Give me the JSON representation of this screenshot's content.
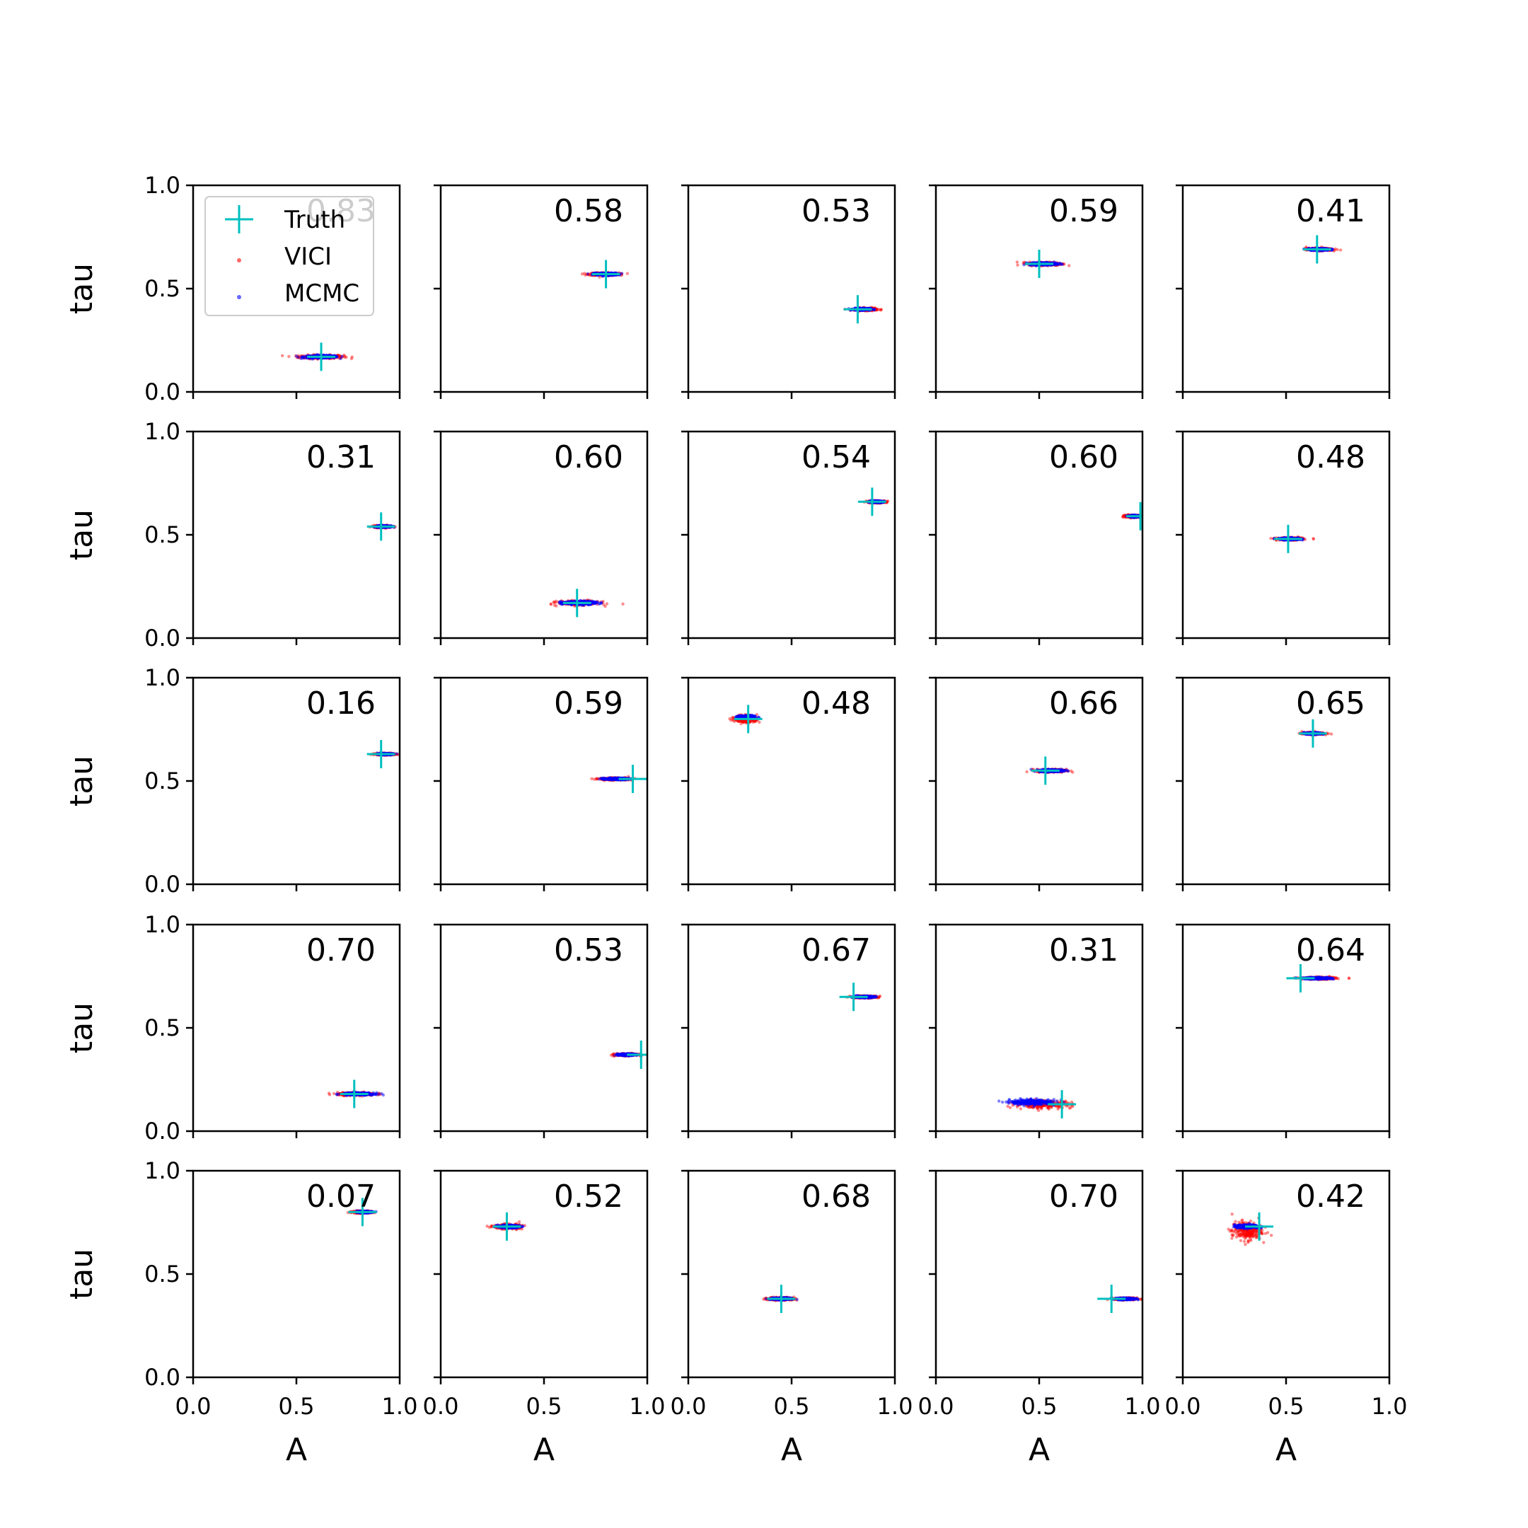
{
  "colors": {
    "truth": "#00bfbf",
    "vici": "#ff0000",
    "mcmc": "#0000ff",
    "axis": "#000000"
  },
  "legend": {
    "items": [
      {
        "label": "Truth",
        "marker": "plus",
        "color": "#00bfbf"
      },
      {
        "label": "VICI",
        "marker": "dot",
        "color": "#ff0000"
      },
      {
        "label": "MCMC",
        "marker": "dot",
        "color": "#0000ff"
      }
    ],
    "placement": "upper-left of first panel"
  },
  "chart_data": {
    "type": "scatter",
    "layout": {
      "rows": 5,
      "cols": 5
    },
    "xlabel": "A",
    "ylabel": "tau",
    "xlim": [
      0.0,
      1.0
    ],
    "ylim": [
      0.0,
      1.0
    ],
    "xticks": [
      "0.0",
      "0.5",
      "1.0"
    ],
    "yticks": [
      "0.0",
      "0.5",
      "1.0"
    ],
    "grid": false,
    "panels": [
      {
        "score": "0.83",
        "truth": [
          0.62,
          0.17
        ],
        "vici": {
          "center": [
            0.62,
            0.17
          ],
          "spread": [
            0.12,
            0.01
          ]
        },
        "mcmc": {
          "center": [
            0.62,
            0.17
          ],
          "spread": [
            0.1,
            0.008
          ]
        }
      },
      {
        "score": "0.58",
        "truth": [
          0.8,
          0.57
        ],
        "vici": {
          "center": [
            0.79,
            0.57
          ],
          "spread": [
            0.08,
            0.008
          ]
        },
        "mcmc": {
          "center": [
            0.8,
            0.57
          ],
          "spread": [
            0.07,
            0.007
          ]
        }
      },
      {
        "score": "0.53",
        "truth": [
          0.82,
          0.4
        ],
        "vici": {
          "center": [
            0.86,
            0.4
          ],
          "spread": [
            0.06,
            0.007
          ]
        },
        "mcmc": {
          "center": [
            0.84,
            0.4
          ],
          "spread": [
            0.05,
            0.006
          ]
        }
      },
      {
        "score": "0.59",
        "truth": [
          0.5,
          0.62
        ],
        "vici": {
          "center": [
            0.53,
            0.62
          ],
          "spread": [
            0.09,
            0.009
          ]
        },
        "mcmc": {
          "center": [
            0.52,
            0.62
          ],
          "spread": [
            0.08,
            0.008
          ]
        }
      },
      {
        "score": "0.41",
        "truth": [
          0.65,
          0.69
        ],
        "vici": {
          "center": [
            0.66,
            0.69
          ],
          "spread": [
            0.07,
            0.007
          ]
        },
        "mcmc": {
          "center": [
            0.66,
            0.69
          ],
          "spread": [
            0.06,
            0.006
          ]
        }
      },
      {
        "score": "0.31",
        "truth": [
          0.91,
          0.54
        ],
        "vici": {
          "center": [
            0.92,
            0.54
          ],
          "spread": [
            0.05,
            0.006
          ]
        },
        "mcmc": {
          "center": [
            0.92,
            0.54
          ],
          "spread": [
            0.04,
            0.005
          ]
        }
      },
      {
        "score": "0.60",
        "truth": [
          0.66,
          0.17
        ],
        "vici": {
          "center": [
            0.67,
            0.17
          ],
          "spread": [
            0.11,
            0.012
          ]
        },
        "mcmc": {
          "center": [
            0.67,
            0.17
          ],
          "spread": [
            0.1,
            0.01
          ]
        }
      },
      {
        "score": "0.54",
        "truth": [
          0.89,
          0.66
        ],
        "vici": {
          "center": [
            0.91,
            0.66
          ],
          "spread": [
            0.05,
            0.006
          ]
        },
        "mcmc": {
          "center": [
            0.91,
            0.66
          ],
          "spread": [
            0.04,
            0.005
          ]
        }
      },
      {
        "score": "0.60",
        "truth": [
          0.99,
          0.59
        ],
        "vici": {
          "center": [
            0.95,
            0.59
          ],
          "spread": [
            0.04,
            0.006
          ]
        },
        "mcmc": {
          "center": [
            0.96,
            0.59
          ],
          "spread": [
            0.03,
            0.005
          ]
        }
      },
      {
        "score": "0.48",
        "truth": [
          0.51,
          0.48
        ],
        "vici": {
          "center": [
            0.52,
            0.48
          ],
          "spread": [
            0.07,
            0.007
          ]
        },
        "mcmc": {
          "center": [
            0.52,
            0.48
          ],
          "spread": [
            0.06,
            0.006
          ]
        }
      },
      {
        "score": "0.16",
        "truth": [
          0.91,
          0.63
        ],
        "vici": {
          "center": [
            0.93,
            0.63
          ],
          "spread": [
            0.05,
            0.005
          ]
        },
        "mcmc": {
          "center": [
            0.93,
            0.63
          ],
          "spread": [
            0.04,
            0.004
          ]
        }
      },
      {
        "score": "0.59",
        "truth": [
          0.93,
          0.51
        ],
        "vici": {
          "center": [
            0.84,
            0.51
          ],
          "spread": [
            0.08,
            0.006
          ]
        },
        "mcmc": {
          "center": [
            0.85,
            0.51
          ],
          "spread": [
            0.07,
            0.005
          ]
        }
      },
      {
        "score": "0.48",
        "truth": [
          0.29,
          0.8
        ],
        "vici": {
          "center": [
            0.28,
            0.8
          ],
          "spread": [
            0.06,
            0.02
          ]
        },
        "mcmc": {
          "center": [
            0.28,
            0.81
          ],
          "spread": [
            0.05,
            0.008
          ]
        }
      },
      {
        "score": "0.66",
        "truth": [
          0.53,
          0.55
        ],
        "vici": {
          "center": [
            0.56,
            0.55
          ],
          "spread": [
            0.08,
            0.008
          ]
        },
        "mcmc": {
          "center": [
            0.56,
            0.55
          ],
          "spread": [
            0.07,
            0.007
          ]
        }
      },
      {
        "score": "0.65",
        "truth": [
          0.63,
          0.73
        ],
        "vici": {
          "center": [
            0.63,
            0.73
          ],
          "spread": [
            0.06,
            0.006
          ]
        },
        "mcmc": {
          "center": [
            0.63,
            0.73
          ],
          "spread": [
            0.05,
            0.005
          ]
        }
      },
      {
        "score": "0.70",
        "truth": [
          0.78,
          0.18
        ],
        "vici": {
          "center": [
            0.79,
            0.18
          ],
          "spread": [
            0.1,
            0.008
          ]
        },
        "mcmc": {
          "center": [
            0.8,
            0.18
          ],
          "spread": [
            0.09,
            0.007
          ]
        }
      },
      {
        "score": "0.53",
        "truth": [
          0.97,
          0.37
        ],
        "vici": {
          "center": [
            0.9,
            0.37
          ],
          "spread": [
            0.06,
            0.006
          ]
        },
        "mcmc": {
          "center": [
            0.9,
            0.37
          ],
          "spread": [
            0.05,
            0.005
          ]
        }
      },
      {
        "score": "0.67",
        "truth": [
          0.8,
          0.65
        ],
        "vici": {
          "center": [
            0.85,
            0.65
          ],
          "spread": [
            0.07,
            0.006
          ]
        },
        "mcmc": {
          "center": [
            0.85,
            0.65
          ],
          "spread": [
            0.06,
            0.005
          ]
        }
      },
      {
        "score": "0.31",
        "truth": [
          0.61,
          0.13
        ],
        "vici": {
          "center": [
            0.52,
            0.13
          ],
          "spread": [
            0.15,
            0.02
          ]
        },
        "mcmc": {
          "center": [
            0.47,
            0.14
          ],
          "spread": [
            0.13,
            0.015
          ]
        }
      },
      {
        "score": "0.64",
        "truth": [
          0.57,
          0.74
        ],
        "vici": {
          "center": [
            0.66,
            0.74
          ],
          "spread": [
            0.09,
            0.006
          ]
        },
        "mcmc": {
          "center": [
            0.65,
            0.74
          ],
          "spread": [
            0.08,
            0.005
          ]
        }
      },
      {
        "score": "0.07",
        "truth": [
          0.82,
          0.8
        ],
        "vici": {
          "center": [
            0.82,
            0.8
          ],
          "spread": [
            0.05,
            0.006
          ]
        },
        "mcmc": {
          "center": [
            0.83,
            0.8
          ],
          "spread": [
            0.04,
            0.005
          ]
        }
      },
      {
        "score": "0.52",
        "truth": [
          0.32,
          0.73
        ],
        "vici": {
          "center": [
            0.32,
            0.73
          ],
          "spread": [
            0.07,
            0.012
          ]
        },
        "mcmc": {
          "center": [
            0.33,
            0.73
          ],
          "spread": [
            0.06,
            0.008
          ]
        }
      },
      {
        "score": "0.68",
        "truth": [
          0.45,
          0.38
        ],
        "vici": {
          "center": [
            0.45,
            0.38
          ],
          "spread": [
            0.07,
            0.008
          ]
        },
        "mcmc": {
          "center": [
            0.45,
            0.38
          ],
          "spread": [
            0.06,
            0.006
          ]
        }
      },
      {
        "score": "0.70",
        "truth": [
          0.85,
          0.38
        ],
        "vici": {
          "center": [
            0.92,
            0.38
          ],
          "spread": [
            0.06,
            0.006
          ]
        },
        "mcmc": {
          "center": [
            0.92,
            0.38
          ],
          "spread": [
            0.05,
            0.005
          ]
        }
      },
      {
        "score": "0.42",
        "truth": [
          0.37,
          0.73
        ],
        "vici": {
          "center": [
            0.31,
            0.71
          ],
          "spread": [
            0.08,
            0.05
          ]
        },
        "mcmc": {
          "center": [
            0.31,
            0.73
          ],
          "spread": [
            0.07,
            0.01
          ]
        }
      }
    ]
  }
}
